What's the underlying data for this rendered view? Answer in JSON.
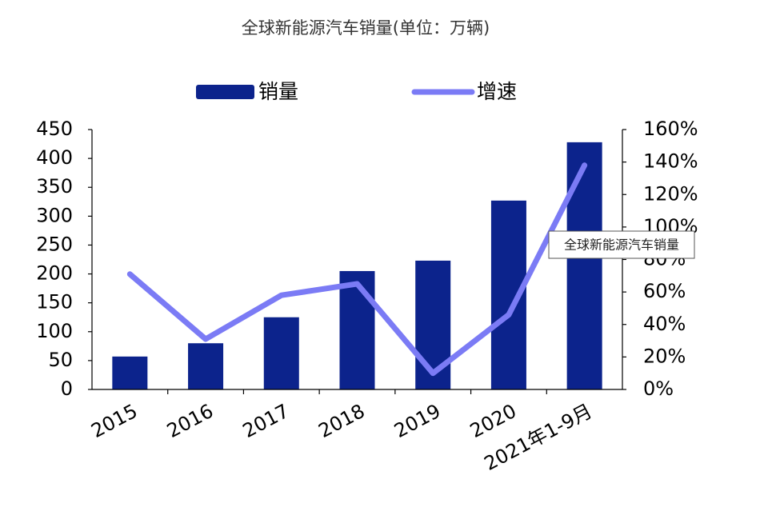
{
  "chart_data": {
    "type": "bar-line",
    "title": "全球新能源汽车销量(单位：万辆)",
    "categories": [
      "2015",
      "2016",
      "2017",
      "2018",
      "2019",
      "2020",
      "2021年1-9月"
    ],
    "series": [
      {
        "name": "销量",
        "color": "#0c238c",
        "values": [
          57,
          80,
          125,
          205,
          223,
          327,
          428
        ]
      },
      {
        "name": "增速",
        "color": "#7b7bf5",
        "values": [
          71,
          31,
          58,
          65,
          10,
          46,
          138
        ],
        "axis": "y2"
      }
    ],
    "ylim": [
      0,
      450
    ],
    "yticks": [
      0,
      50,
      100,
      150,
      200,
      250,
      300,
      350,
      400,
      450
    ],
    "y2lim": [
      0,
      160
    ],
    "y2ticks": [
      {
        "value": 0,
        "label": "0%"
      },
      {
        "value": 20,
        "label": "20%"
      },
      {
        "value": 40,
        "label": "40%"
      },
      {
        "value": 60,
        "label": "60%"
      },
      {
        "value": 80,
        "label": "80%"
      },
      {
        "value": 100,
        "label": "100%"
      },
      {
        "value": 120,
        "label": "120%"
      },
      {
        "value": 140,
        "label": "140%"
      },
      {
        "value": 160,
        "label": "160%"
      }
    ],
    "legend": "top",
    "tooltip": "全球新能源汽车销量"
  }
}
